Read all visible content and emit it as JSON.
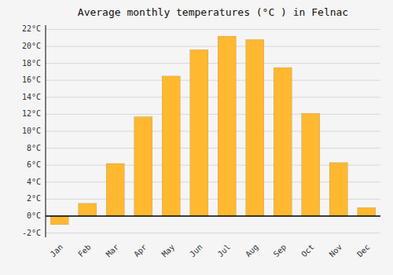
{
  "chart_data": {
    "type": "bar",
    "title": "Average monthly temperatures (°C ) in Felnac",
    "categories": [
      "Jan",
      "Feb",
      "Mar",
      "Apr",
      "May",
      "Jun",
      "Jul",
      "Aug",
      "Sep",
      "Oct",
      "Nov",
      "Dec"
    ],
    "values": [
      -1.0,
      1.5,
      6.2,
      11.7,
      16.5,
      19.6,
      21.2,
      20.8,
      17.5,
      12.1,
      6.3,
      1.0
    ],
    "color": "#FFB830",
    "ylim": [
      -2.5,
      22.5
    ],
    "yticks": [
      {
        "value": 22,
        "label": "22°C"
      },
      {
        "value": 20,
        "label": "20°C"
      },
      {
        "value": 18,
        "label": "18°C"
      },
      {
        "value": 16,
        "label": "16°C"
      },
      {
        "value": 14,
        "label": "14°C"
      },
      {
        "value": 12,
        "label": "12°C"
      },
      {
        "value": 10,
        "label": "10°C"
      },
      {
        "value": 8,
        "label": "8°C"
      },
      {
        "value": 6,
        "label": "6°C"
      },
      {
        "value": 4,
        "label": "4°C"
      },
      {
        "value": 2,
        "label": "2°C"
      },
      {
        "value": 0,
        "label": "0°C"
      },
      {
        "value": -2,
        "label": "-2°C"
      }
    ],
    "grid": true
  }
}
